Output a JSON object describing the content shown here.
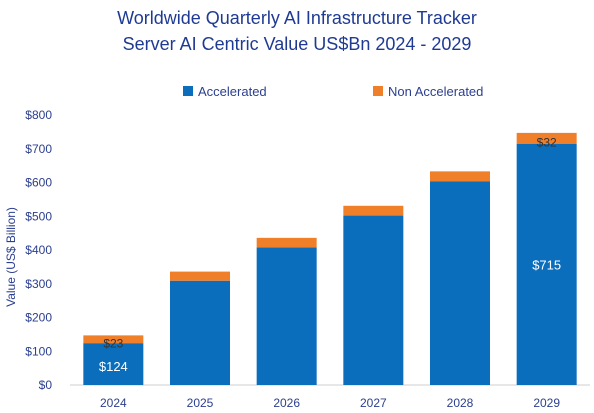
{
  "chart_data": {
    "type": "bar",
    "stacked": true,
    "title": "Worldwide Quarterly AI Infrastructure Tracker",
    "subtitle": "Server AI Centric Value US$Bn 2024 - 2029",
    "ylabel": "Value  (US$ Billion)",
    "xlabel": "",
    "categories": [
      "2024",
      "2025",
      "2026",
      "2027",
      "2028",
      "2029"
    ],
    "ylim": [
      0,
      800
    ],
    "yticks": [
      "$0",
      "$100",
      "$200",
      "$300",
      "$400",
      "$500",
      "$600",
      "$700",
      "$800"
    ],
    "legend_position": "top",
    "series": [
      {
        "name": "Accelerated",
        "color": "#0a6ebd",
        "values": [
          124,
          309,
          408,
          502,
          603,
          715
        ],
        "labels": [
          "$124",
          "",
          "",
          "",
          "",
          "$715"
        ]
      },
      {
        "name": "Non Accelerated",
        "color": "#f07f2a",
        "values": [
          23,
          27,
          28,
          29,
          30,
          32
        ],
        "labels": [
          "$23",
          "",
          "",
          "",
          "",
          "$32"
        ]
      }
    ]
  }
}
